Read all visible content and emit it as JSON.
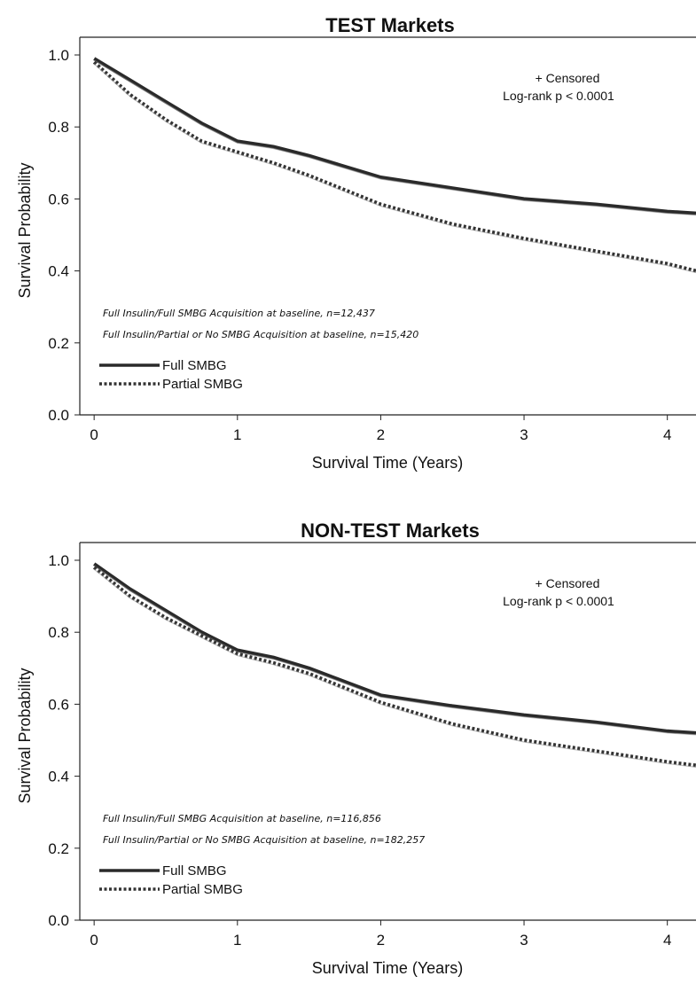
{
  "chart_data": [
    {
      "type": "line",
      "title": "TEST Markets",
      "xlabel": "Survival Time (Years)",
      "ylabel": "Survival Probability",
      "xlim": [
        -0.1,
        4.2
      ],
      "ylim": [
        0,
        1.0
      ],
      "x_ticks": [
        "0",
        "1",
        "2",
        "3",
        "4"
      ],
      "y_ticks": [
        "0.0",
        "0.2",
        "0.4",
        "0.6",
        "0.8",
        "1.0"
      ],
      "annotations": [
        "+ Censored",
        "Log-rank p < 0.0001"
      ],
      "sample_notes": [
        "Full Insulin/Full SMBG Acquisition at baseline, n=12,437",
        "Full Insulin/Partial or No SMBG Acquisition at baseline, n=15,420"
      ],
      "legend": [
        "Full SMBG",
        "Partial SMBG"
      ],
      "series": [
        {
          "name": "Full SMBG",
          "style": "solid",
          "x": [
            0,
            0.25,
            0.5,
            0.75,
            1.0,
            1.25,
            1.5,
            2.0,
            2.5,
            3.0,
            3.5,
            4.0,
            4.2
          ],
          "y": [
            0.99,
            0.93,
            0.87,
            0.81,
            0.76,
            0.745,
            0.72,
            0.66,
            0.63,
            0.6,
            0.585,
            0.565,
            0.56
          ]
        },
        {
          "name": "Partial SMBG",
          "style": "dotted",
          "x": [
            0,
            0.25,
            0.5,
            0.75,
            1.0,
            1.25,
            1.5,
            2.0,
            2.5,
            3.0,
            3.5,
            4.0,
            4.2
          ],
          "y": [
            0.98,
            0.89,
            0.82,
            0.76,
            0.73,
            0.7,
            0.665,
            0.585,
            0.53,
            0.49,
            0.455,
            0.42,
            0.4
          ]
        }
      ]
    },
    {
      "type": "line",
      "title": "NON-TEST Markets",
      "xlabel": "Survival Time (Years)",
      "ylabel": "Survival Probability",
      "xlim": [
        -0.1,
        4.2
      ],
      "ylim": [
        0,
        1.0
      ],
      "x_ticks": [
        "0",
        "1",
        "2",
        "3",
        "4"
      ],
      "y_ticks": [
        "0.0",
        "0.2",
        "0.4",
        "0.6",
        "0.8",
        "1.0"
      ],
      "annotations": [
        "+ Censored",
        "Log-rank p < 0.0001"
      ],
      "sample_notes": [
        "Full Insulin/Full SMBG Acquisition at baseline, n=116,856",
        "Full Insulin/Partial or No SMBG Acquisition at baseline, n=182,257"
      ],
      "legend": [
        "Full SMBG",
        "Partial SMBG"
      ],
      "series": [
        {
          "name": "Full SMBG",
          "style": "solid",
          "x": [
            0,
            0.25,
            0.5,
            0.75,
            1.0,
            1.25,
            1.5,
            2.0,
            2.5,
            3.0,
            3.5,
            4.0,
            4.2
          ],
          "y": [
            0.99,
            0.92,
            0.86,
            0.8,
            0.75,
            0.73,
            0.7,
            0.625,
            0.595,
            0.57,
            0.55,
            0.525,
            0.52
          ]
        },
        {
          "name": "Partial SMBG",
          "style": "dotted",
          "x": [
            0,
            0.25,
            0.5,
            0.75,
            1.0,
            1.25,
            1.5,
            2.0,
            2.5,
            3.0,
            3.5,
            4.0,
            4.2
          ],
          "y": [
            0.98,
            0.9,
            0.84,
            0.79,
            0.74,
            0.715,
            0.685,
            0.605,
            0.545,
            0.5,
            0.47,
            0.44,
            0.43
          ]
        }
      ]
    }
  ]
}
